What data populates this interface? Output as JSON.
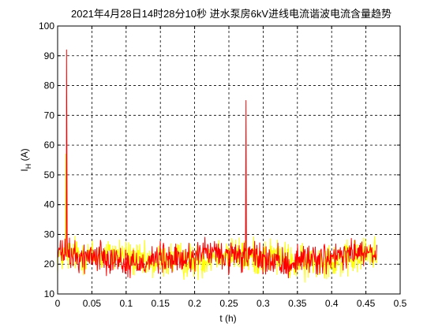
{
  "chart_data": {
    "type": "line",
    "title": "2021年4月28日14时28分10秒  进水泵房6kV进线电流谐波电流含量趋势",
    "xlabel": "t (h)",
    "ylabel_main": "I",
    "ylabel_sub": "H",
    "ylabel_unit": " (A)",
    "xlim": [
      0,
      0.5
    ],
    "ylim": [
      10,
      100
    ],
    "xticks": [
      "0",
      "0.05",
      "0.1",
      "0.15",
      "0.2",
      "0.25",
      "0.3",
      "0.35",
      "0.4",
      "0.45",
      "0.5"
    ],
    "yticks": [
      "10",
      "20",
      "30",
      "40",
      "50",
      "60",
      "70",
      "80",
      "90",
      "100"
    ],
    "grid": true,
    "x_end": 0.466,
    "series": [
      {
        "color": "#ffff00",
        "mean": 22,
        "noise": 4.2,
        "spikes": [
          [
            0.012,
            57
          ],
          [
            0.27,
            27
          ]
        ]
      },
      {
        "color": "#ff0000",
        "mean": 22,
        "noise": 3.6,
        "spikes": [
          [
            0.013,
            92
          ],
          [
            0.275,
            75
          ]
        ]
      }
    ]
  }
}
